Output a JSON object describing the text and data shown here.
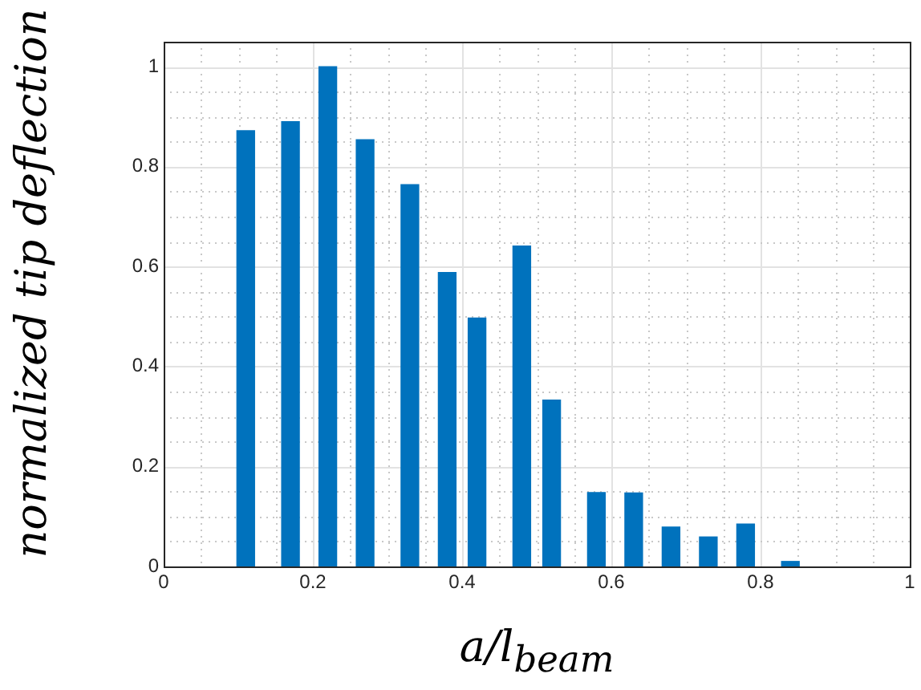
{
  "chart_data": {
    "type": "bar",
    "xlabel": "a/l$_{beam}$",
    "ylabel": "normalized tip deflection",
    "color": "#0072bd",
    "x": [
      0.11,
      0.17,
      0.22,
      0.27,
      0.33,
      0.38,
      0.42,
      0.48,
      0.52,
      0.58,
      0.63,
      0.68,
      0.73,
      0.78,
      0.84
    ],
    "values": [
      0.872,
      0.89,
      1.0,
      0.854,
      0.764,
      0.588,
      0.497,
      0.641,
      0.333,
      0.148,
      0.147,
      0.079,
      0.059,
      0.085,
      0.01
    ],
    "xlim": [
      0,
      1
    ],
    "xticks": [
      0,
      0.2,
      0.4,
      0.6,
      0.8,
      1
    ],
    "ylim": [
      0,
      1.05
    ],
    "yticks": [
      0,
      0.2,
      0.4,
      0.6,
      0.8,
      1
    ],
    "grid": true
  }
}
